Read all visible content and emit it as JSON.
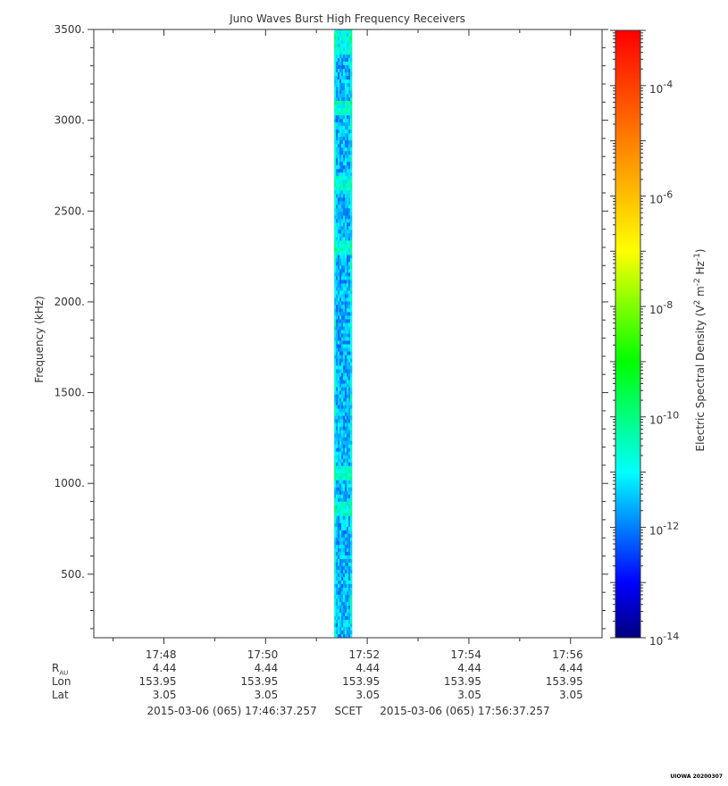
{
  "chart_data": {
    "type": "heatmap",
    "title": "Juno Waves Burst High Frequency Receivers",
    "ylabel": "Frequency (kHz)",
    "colorbar_label": "Electric Spectral Density (V² m⁻² Hz⁻¹)",
    "colorbar_label_parts": {
      "prefix": "Electric Spectral Density (V",
      "sup1": "2",
      "mid": " m",
      "sup2": "-2",
      "mid2": " Hz",
      "sup3": "-1",
      "suffix": ")"
    },
    "colorbar_log_range": [
      -14,
      -3.0
    ],
    "colorbar_ticks": [
      {
        "exp": -14,
        "label_base": "10",
        "label_exp": "-14"
      },
      {
        "exp": -12,
        "label_base": "10",
        "label_exp": "-12"
      },
      {
        "exp": -10,
        "label_base": "10",
        "label_exp": "-10"
      },
      {
        "exp": -8,
        "label_base": "10",
        "label_exp": "-8"
      },
      {
        "exp": -6,
        "label_base": "10",
        "label_exp": "-6"
      },
      {
        "exp": -4,
        "label_base": "10",
        "label_exp": "-4"
      }
    ],
    "colorscale": [
      "#00007f",
      "#0000ff",
      "#007fff",
      "#00ffff",
      "#00ff7f",
      "#00ff00",
      "#7fff00",
      "#ffff00",
      "#ffbf00",
      "#ff7f00",
      "#ff3f00",
      "#ff0000"
    ],
    "ylim": [
      150,
      3500
    ],
    "yticks": [
      {
        "value": 500,
        "label": "500."
      },
      {
        "value": 1000,
        "label": "1000."
      },
      {
        "value": 1500,
        "label": "1500."
      },
      {
        "value": 2000,
        "label": "2000."
      },
      {
        "value": 2500,
        "label": "2500."
      },
      {
        "value": 3000,
        "label": "3000."
      },
      {
        "value": 3500,
        "label": "3500."
      }
    ],
    "xlim_minutes": [
      46.62,
      56.62
    ],
    "xticks": [
      {
        "minute": 48,
        "label": "17:48",
        "r_au": "4.44",
        "lon": "153.95",
        "lat": "3.05"
      },
      {
        "minute": 50,
        "label": "17:50",
        "r_au": "4.44",
        "lon": "153.95",
        "lat": "3.05"
      },
      {
        "minute": 52,
        "label": "17:52",
        "r_au": "4.44",
        "lon": "153.95",
        "lat": "3.05"
      },
      {
        "minute": 54,
        "label": "17:54",
        "r_au": "4.44",
        "lon": "153.95",
        "lat": "3.05"
      },
      {
        "minute": 56,
        "label": "17:56",
        "r_au": "4.44",
        "lon": "153.95",
        "lat": "3.05"
      }
    ],
    "burst": {
      "start_minute": 51.35,
      "end_minute": 51.7,
      "typical_log_density": -11.6,
      "bright_bands_khz": [
        3070,
        2650,
        2300,
        1050,
        850
      ]
    }
  },
  "ephemeris_labels": {
    "r": "R",
    "r_sub": "AU",
    "lon": "Lon",
    "lat": "Lat"
  },
  "time_range": {
    "start": "2015-03-06 (065) 17:46:37.257",
    "frame": "SCET",
    "end": "2015-03-06 (065) 17:56:37.257"
  },
  "stamp": "UIOWA 20200307"
}
